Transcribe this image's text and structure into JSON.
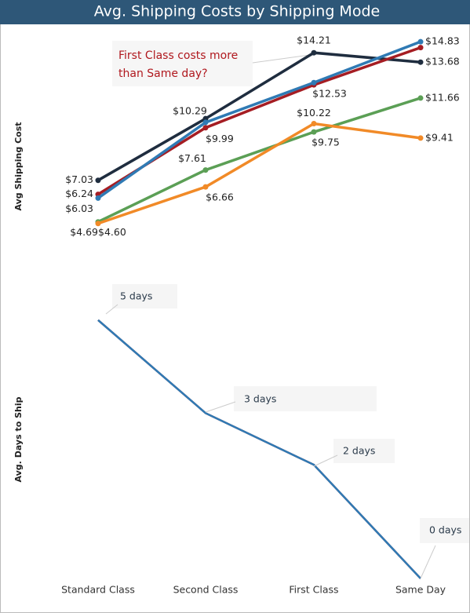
{
  "chart_data": [
    {
      "type": "line",
      "title": "Avg. Shipping Costs by Shipping Mode",
      "ylabel": "Avg Shipping Cost",
      "ylim": [
        2.6,
        15.5
      ],
      "annotation": [
        "First Class costs more",
        "than Same day?"
      ],
      "series": [
        {
          "color": "#1f2d3f",
          "values": [
            7.03,
            10.5,
            14.21,
            13.68
          ],
          "value_labels": [
            "$7.03",
            null,
            "$14.21",
            "$13.68"
          ]
        },
        {
          "color": "#a51d23",
          "values": [
            6.24,
            9.99,
            12.4,
            14.5
          ],
          "value_labels": [
            "$6.24",
            "$9.99",
            null,
            null
          ]
        },
        {
          "color": "#2f7ab4",
          "values": [
            6.03,
            10.29,
            12.53,
            14.83
          ],
          "value_labels": [
            "$6.03",
            "$10.29",
            "$12.53",
            "$14.83"
          ]
        },
        {
          "color": "#5b9f55",
          "values": [
            4.69,
            7.61,
            9.75,
            11.66
          ],
          "value_labels": [
            "$4.69",
            "$7.61",
            "$9.75",
            "$11.66"
          ]
        },
        {
          "color": "#f18a27",
          "values": [
            4.6,
            6.66,
            10.22,
            9.41
          ],
          "value_labels": [
            "$4.60",
            "$6.66",
            "$10.22",
            "$9.41"
          ]
        }
      ]
    },
    {
      "type": "line",
      "ylabel": "Avg. Days to Ship",
      "ylim": [
        0,
        6
      ],
      "categories": [
        "Standard Class",
        "Second Class",
        "First Class",
        "Same Day"
      ],
      "series": [
        {
          "color": "#a51d23",
          "values": [
            5,
            3.2,
            2.2,
            0
          ]
        },
        {
          "color": "#2f7ab4",
          "values": [
            5,
            3.2,
            2.2,
            0
          ],
          "value_labels": [
            "5 days",
            "3 days",
            "2 days",
            "0 days"
          ]
        }
      ]
    }
  ]
}
